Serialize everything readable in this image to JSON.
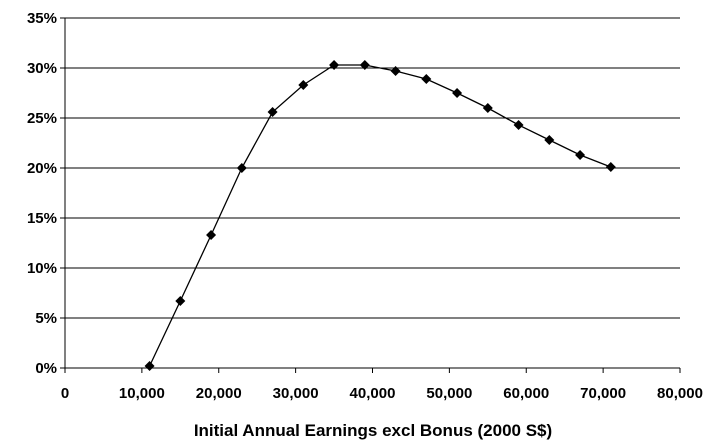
{
  "chart_data": {
    "type": "line",
    "title": "",
    "xlabel": "Initial Annual Earnings excl Bonus (2000 S$)",
    "ylabel": "",
    "xlim": [
      0,
      80000
    ],
    "ylim": [
      0,
      35
    ],
    "x_ticks": [
      0,
      10000,
      20000,
      30000,
      40000,
      50000,
      60000,
      70000,
      80000
    ],
    "x_tick_labels": [
      "0",
      "10,000",
      "20,000",
      "30,000",
      "40,000",
      "50,000",
      "60,000",
      "70,000",
      "80,000"
    ],
    "y_ticks": [
      0,
      5,
      10,
      15,
      20,
      25,
      30,
      35
    ],
    "y_tick_labels": [
      "0%",
      "5%",
      "10%",
      "15%",
      "20%",
      "25%",
      "30%",
      "35%"
    ],
    "grid": "horizontal",
    "legend": "none",
    "line_color": "#000000",
    "marker": "diamond",
    "series": [
      {
        "x": [
          11000,
          15000,
          19000,
          23000,
          27000,
          31000,
          35000,
          39000,
          43000,
          47000,
          51000,
          55000,
          59000,
          63000,
          67000,
          71000
        ],
        "values": [
          0.2,
          6.7,
          13.3,
          20.0,
          25.6,
          28.3,
          30.3,
          30.3,
          29.7,
          28.9,
          27.5,
          26.0,
          24.3,
          22.8,
          21.3,
          20.1
        ]
      }
    ]
  }
}
